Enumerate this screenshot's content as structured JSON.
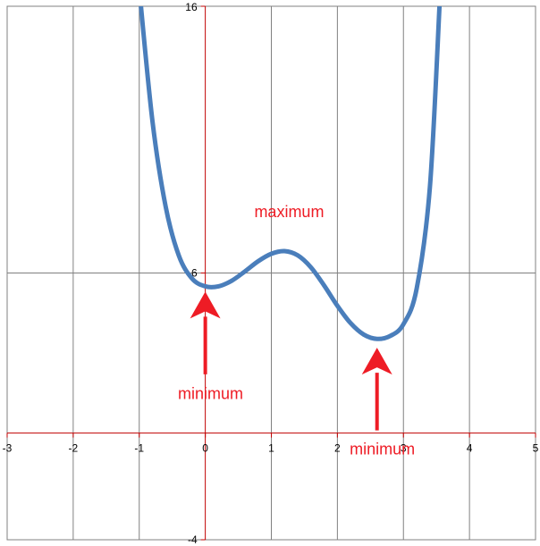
{
  "chart_data": {
    "type": "line",
    "title": "",
    "xlabel": "",
    "ylabel": "",
    "xlim": [
      -3,
      5
    ],
    "ylim": [
      -4,
      16
    ],
    "x_ticks": [
      "-3",
      "-2",
      "-1",
      "0",
      "1",
      "2",
      "3",
      "4",
      "5"
    ],
    "y_ticks": [
      "16",
      "6",
      "-4"
    ],
    "grid": true,
    "series": [
      {
        "color": "#4a7ebb",
        "x": [
          -1.0,
          -0.8,
          -0.6,
          -0.4,
          -0.2,
          0.0,
          0.2,
          0.4,
          0.6,
          0.8,
          1.0,
          1.2,
          1.4,
          1.6,
          1.8,
          2.0,
          2.2,
          2.4,
          2.6,
          2.8,
          3.0,
          3.2,
          3.4,
          3.55
        ],
        "y": [
          16.67,
          11.69,
          8.49,
          6.65,
          5.79,
          5.5,
          5.5,
          5.71,
          6.06,
          6.44,
          6.72,
          6.82,
          6.66,
          6.21,
          5.53,
          4.77,
          4.12,
          3.69,
          3.53,
          3.64,
          4.08,
          5.41,
          9.2,
          16.2
        ]
      }
    ],
    "annotations": [
      {
        "text": "maximum",
        "x": 1.27,
        "y": 8.1
      },
      {
        "text": "minimum",
        "x": 0.08,
        "y": 1.28,
        "arrow_tip": [
          0.0,
          5.3
        ],
        "arrow_tail": [
          0.0,
          2.2
        ]
      },
      {
        "text": "minimum",
        "x": 2.68,
        "y": -0.8,
        "arrow_tip": [
          2.6,
          3.2
        ],
        "arrow_tail": [
          2.6,
          0.1
        ]
      }
    ],
    "colors": {
      "curve": "#4a7ebb",
      "axes": "#c00000",
      "grid": "#808080",
      "annotation": "#ee1c25"
    }
  }
}
